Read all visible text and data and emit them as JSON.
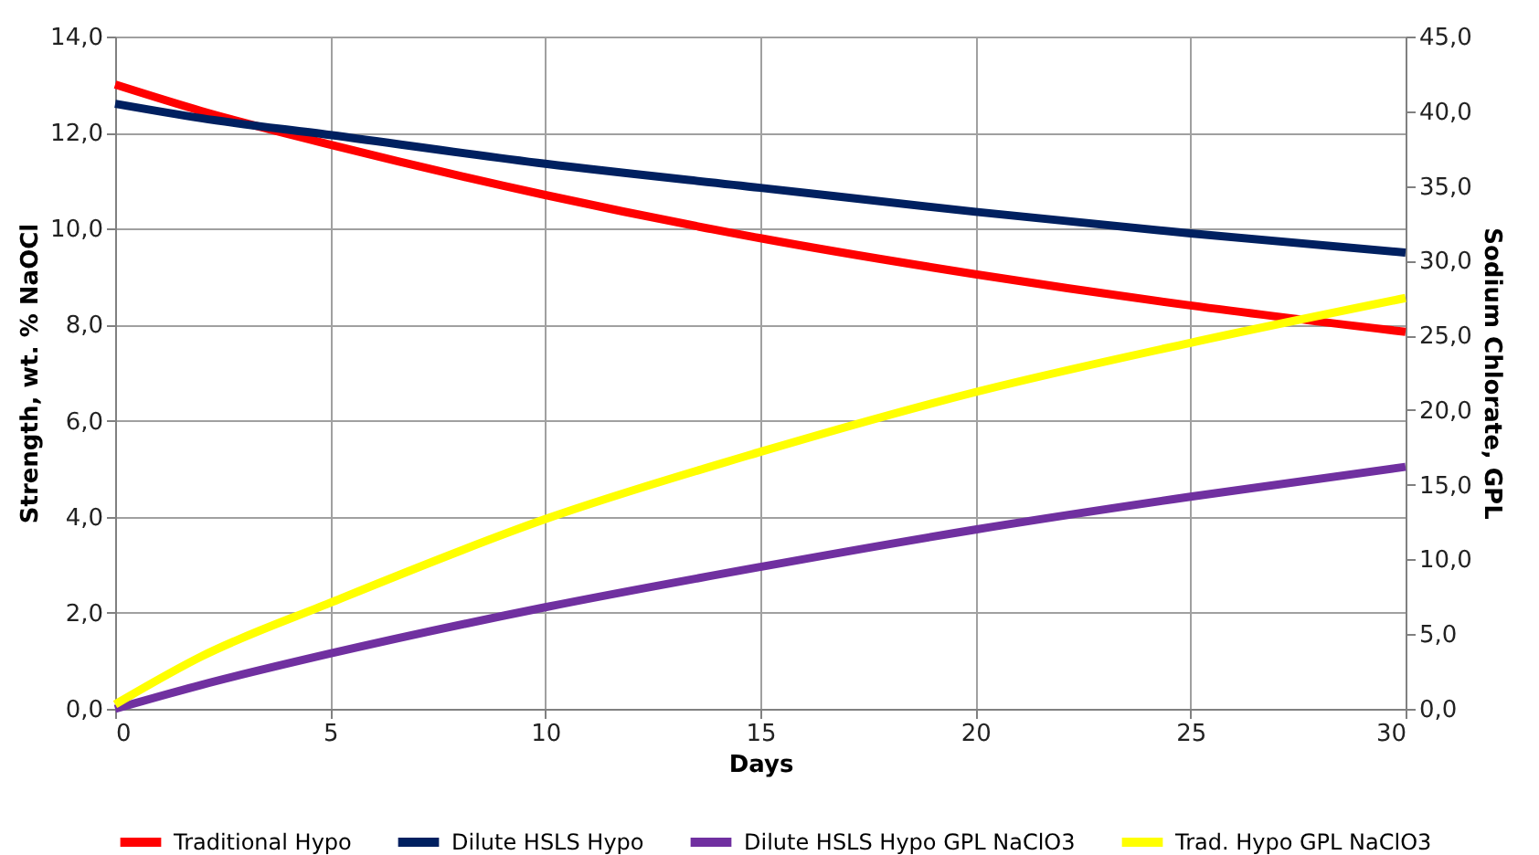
{
  "chart_data": {
    "type": "line",
    "xlabel": "Days",
    "ylabel": "Strength, wt. % NaOCl",
    "y2label": "Sodium Chlorate, GPL",
    "x": [
      0,
      2,
      5,
      10,
      15,
      20,
      25,
      30
    ],
    "series": [
      {
        "name": "Traditional Hypo",
        "color": "#ff0000",
        "values": [
          13.0,
          12.45,
          11.75,
          10.7,
          9.8,
          9.05,
          8.4,
          7.85
        ]
      },
      {
        "name": "Dilute HSLS Hypo",
        "color": "#002060",
        "values": [
          12.6,
          12.3,
          11.95,
          11.35,
          10.85,
          10.35,
          9.9,
          9.5
        ]
      },
      {
        "name": "Dilute HSLS Hypo GPL NaClO3",
        "color": "#7030a0",
        "axis": "y2",
        "values": [
          0.0,
          1.6,
          3.7,
          6.8,
          9.5,
          12.0,
          14.2,
          16.2
        ]
      },
      {
        "name": "Trad. Hypo GPL NaClO3",
        "color": "#ffff00",
        "axis": "y2",
        "values": [
          0.3,
          3.5,
          7.1,
          12.7,
          17.2,
          21.2,
          24.5,
          27.5
        ]
      }
    ],
    "xlim": [
      0,
      30
    ],
    "xticks": [
      0,
      5,
      10,
      15,
      20,
      25,
      30
    ],
    "ylim": [
      0,
      14
    ],
    "yticks": [
      {
        "value": 0,
        "label": "0,0"
      },
      {
        "value": 2,
        "label": "2,0"
      },
      {
        "value": 4,
        "label": "4,0"
      },
      {
        "value": 6,
        "label": "6,0"
      },
      {
        "value": 8,
        "label": "8,0"
      },
      {
        "value": 10,
        "label": "10,0"
      },
      {
        "value": 12,
        "label": "12,0"
      },
      {
        "value": 14,
        "label": "14,0"
      }
    ],
    "y2lim": [
      0,
      45
    ],
    "y2ticks": [
      {
        "value": 0,
        "label": "0,0"
      },
      {
        "value": 5,
        "label": "5,0"
      },
      {
        "value": 10,
        "label": "10,0"
      },
      {
        "value": 15,
        "label": "15,0"
      },
      {
        "value": 20,
        "label": "20,0"
      },
      {
        "value": 25,
        "label": "25,0"
      },
      {
        "value": 30,
        "label": "30,0"
      },
      {
        "value": 35,
        "label": "35,0"
      },
      {
        "value": 40,
        "label": "40,0"
      },
      {
        "value": 45,
        "label": "45,0"
      }
    ],
    "grid": true,
    "legend": "bottom",
    "marker": "none",
    "line_style": "solid"
  }
}
